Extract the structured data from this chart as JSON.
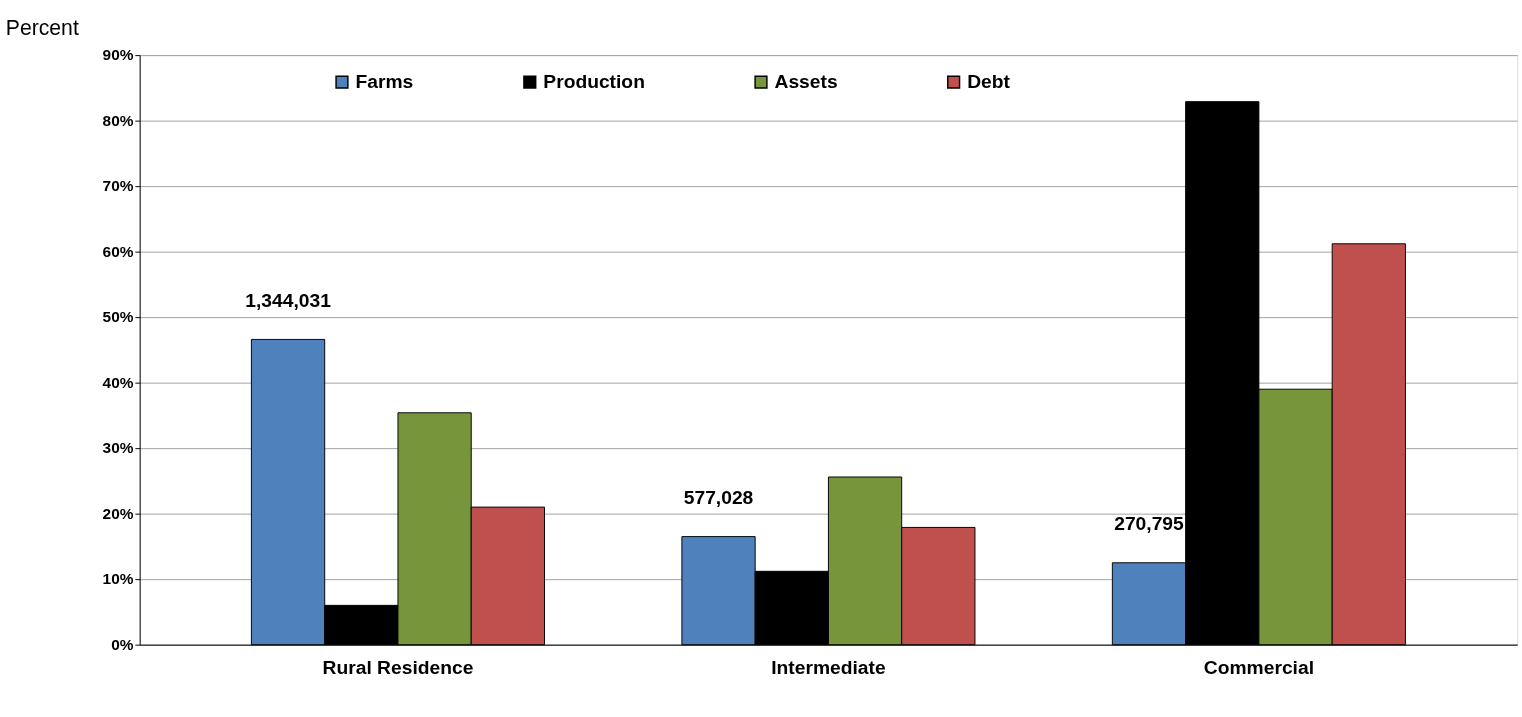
{
  "chart_data": {
    "type": "bar",
    "ylabel": "Percent",
    "categories": [
      "Rural Residence",
      "Intermediate",
      "Commercial"
    ],
    "series": [
      {
        "name": "Farms",
        "color": "#4f81bd",
        "values": [
          46.6,
          16.5,
          12.5
        ]
      },
      {
        "name": "Production",
        "color": "#000000",
        "values": [
          6.0,
          11.2,
          82.9
        ]
      },
      {
        "name": "Assets",
        "color": "#77963b",
        "values": [
          35.4,
          25.6,
          39.0
        ]
      },
      {
        "name": "Debt",
        "color": "#c0504d",
        "values": [
          21.0,
          17.9,
          61.2
        ]
      }
    ],
    "ylim": [
      0,
      90
    ],
    "yticks": [
      {
        "value": 0,
        "label": "0%"
      },
      {
        "value": 10,
        "label": "10%"
      },
      {
        "value": 20,
        "label": "20%"
      },
      {
        "value": 30,
        "label": "30%"
      },
      {
        "value": 40,
        "label": "40%"
      },
      {
        "value": 50,
        "label": "50%"
      },
      {
        "value": 60,
        "label": "60%"
      },
      {
        "value": 70,
        "label": "70%"
      },
      {
        "value": 80,
        "label": "80%"
      },
      {
        "value": 90,
        "label": "90%"
      }
    ],
    "annotations": [
      "1,344,031",
      "577,028",
      "270,795"
    ],
    "grid": "y",
    "legend": "top"
  }
}
